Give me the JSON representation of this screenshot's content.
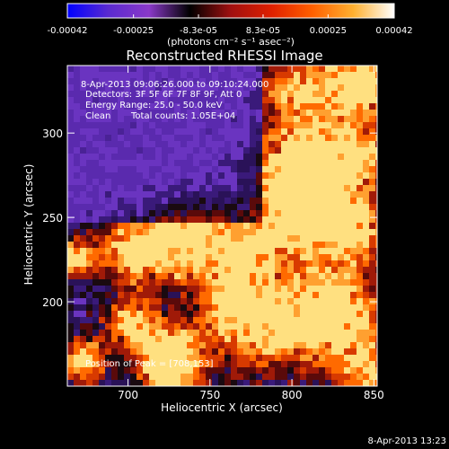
{
  "chart_data": {
    "type": "heatmap",
    "title": "Reconstructed RHESSI Image",
    "xlabel": "Heliocentric X (arcsec)",
    "ylabel": "Heliocentric Y (arcsec)",
    "xlim": [
      663,
      852
    ],
    "ylim": [
      150,
      340
    ],
    "x_ticks": [
      700,
      750,
      800,
      850
    ],
    "y_ticks": [
      200,
      250,
      300
    ],
    "colorbar": {
      "range": [
        -0.00042,
        0.00042
      ],
      "tick_values": [
        -0.00042,
        -0.00025,
        -8.3e-05,
        8.3e-05,
        0.00025,
        0.00042
      ],
      "tick_labels": [
        "-0.00042",
        "-0.00025",
        "-8.3e-05",
        "8.3e-05",
        "0.00025",
        "0.00042"
      ],
      "units_label": "(photons cm⁻² s⁻¹ asec⁻²)",
      "colors": [
        "#0000ff",
        "#5a2ad0",
        "#8a39c8",
        "#000000",
        "#a01010",
        "#e02000",
        "#ff6000",
        "#ffb030",
        "#ffffff"
      ]
    },
    "annotations": {
      "time_range": "8-Apr-2013 09:06:26.000 to 09:10:24.000",
      "detectors": "Detectors: 3F 5F 6F 7F 8F 9F, Att 0",
      "energy_range": "Energy Range: 25.0 - 50.0 keV",
      "clean_label": "Clean",
      "total_counts": "Total counts: 1.05E+04",
      "peak": "Position of Peak = [708,153]"
    },
    "peak_position": [
      708,
      153
    ],
    "grid": false
  },
  "footer": {
    "timestamp": "8-Apr-2013 13:23"
  }
}
